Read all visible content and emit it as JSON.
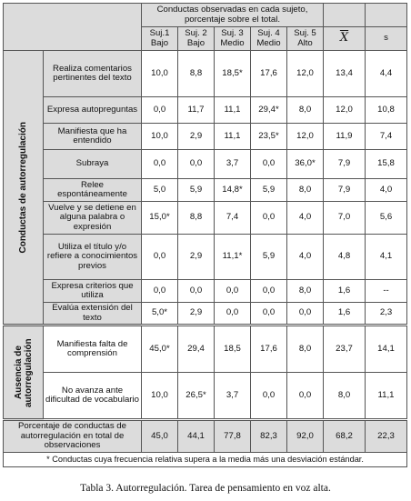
{
  "header": {
    "group_title": "Conductas observadas en cada sujeto, porcentaje sobre el total.",
    "subjects": [
      {
        "name": "Suj.1",
        "level": "Bajo"
      },
      {
        "name": "Suj. 2",
        "level": "Bajo"
      },
      {
        "name": "Suj. 3",
        "level": "Medio"
      },
      {
        "name": "Suj. 4",
        "level": "Medio"
      },
      {
        "name": "Suj. 5",
        "level": "Alto"
      }
    ],
    "mean_symbol": "X",
    "sd_symbol": "s"
  },
  "sections": [
    {
      "title": "Conductas de autorregulación",
      "rows": [
        {
          "label": "Realiza comentarios pertinentes del texto",
          "values": [
            "10,0",
            "8,8",
            "18,5*",
            "17,6",
            "12,0"
          ],
          "mean": "13,4",
          "sd": "4,4"
        },
        {
          "label": "Expresa autopreguntas",
          "values": [
            "0,0",
            "11,7",
            "11,1",
            "29,4*",
            "8,0"
          ],
          "mean": "12,0",
          "sd": "10,8"
        },
        {
          "label": "Manifiesta que ha entendido",
          "values": [
            "10,0",
            "2,9",
            "11,1",
            "23,5*",
            "12,0"
          ],
          "mean": "11,9",
          "sd": "7,4"
        },
        {
          "label": "Subraya",
          "values": [
            "0,0",
            "0,0",
            "3,7",
            "0,0",
            "36,0*"
          ],
          "mean": "7,9",
          "sd": "15,8"
        },
        {
          "label": "Relee espontáneamente",
          "values": [
            "5,0",
            "5,9",
            "14,8*",
            "5,9",
            "8,0"
          ],
          "mean": "7,9",
          "sd": "4,0"
        },
        {
          "label": "Vuelve y se detiene en alguna palabra o expresión",
          "values": [
            "15,0*",
            "8,8",
            "7,4",
            "0,0",
            "4,0"
          ],
          "mean": "7,0",
          "sd": "5,6"
        },
        {
          "label": "Utiliza el título y/o refiere a conocimientos previos",
          "values": [
            "0,0",
            "2,9",
            "11,1*",
            "5,9",
            "4,0"
          ],
          "mean": "4,8",
          "sd": "4,1"
        },
        {
          "label": "Expresa criterios que utiliza",
          "values": [
            "0,0",
            "0,0",
            "0,0",
            "0,0",
            "8,0"
          ],
          "mean": "1,6",
          "sd": "--"
        },
        {
          "label": "Evalúa extensión del texto",
          "values": [
            "5,0*",
            "2,9",
            "0,0",
            "0,0",
            "0,0"
          ],
          "mean": "1,6",
          "sd": "2,3"
        }
      ]
    },
    {
      "title": "Ausencia de autorregulación",
      "rows": [
        {
          "label": "Manifiesta falta de comprensión",
          "values": [
            "45,0*",
            "29,4",
            "18,5",
            "17,6",
            "8,0"
          ],
          "mean": "23,7",
          "sd": "14,1"
        },
        {
          "label": "No avanza ante dificultad de vocabulario",
          "values": [
            "10,0",
            "26,5*",
            "3,7",
            "0,0",
            "0,0"
          ],
          "mean": "8,0",
          "sd": "11,1"
        }
      ]
    }
  ],
  "total_row": {
    "label": "Porcentaje de conductas de autorregulación en total de observaciones",
    "values": [
      "45,0",
      "44,1",
      "77,8",
      "82,3",
      "92,0"
    ],
    "mean": "68,2",
    "sd": "22,3"
  },
  "footnote": "* Conductas cuya frecuencia relativa supera a la media más una desviación estándar.",
  "caption": "Tabla 3. Autorregulación. Tarea de pensamiento en voz alta."
}
